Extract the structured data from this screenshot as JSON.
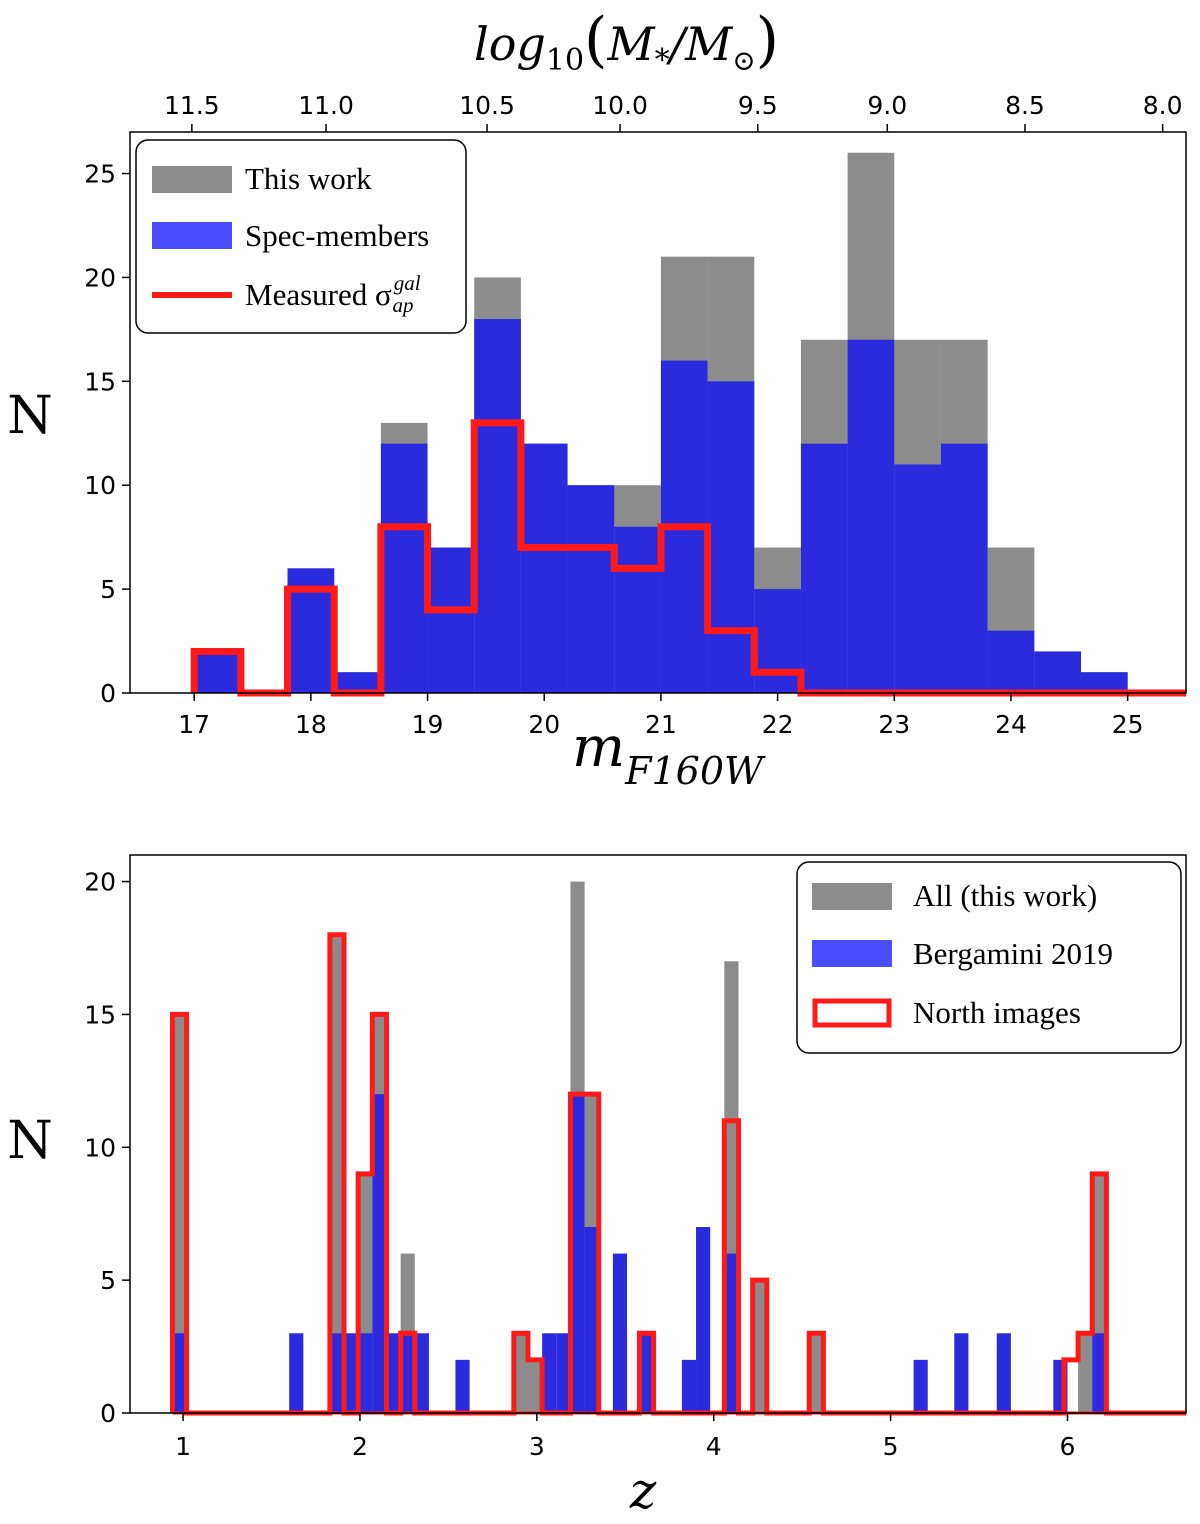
{
  "colors": {
    "gray": "#8c8c8c",
    "blue": "#2b2bdd",
    "blue_legend": "#4d4dff",
    "red": "#ff1a1a"
  },
  "chart_data": [
    {
      "type": "histogram",
      "ylabel": "N",
      "xlabel_main": "m",
      "xlabel_sub": "F160W",
      "top_axis_label": "log10(M*/M⊙)",
      "top_label_parts": {
        "func": "log",
        "func_sub": "10",
        "open": "(",
        "m": "M",
        "star": "*",
        "slash": "/",
        "sun": "⊙",
        "close": ")"
      },
      "xlim": [
        16.45,
        25.5
      ],
      "ylim": [
        0,
        27
      ],
      "xticks": [
        "17",
        "18",
        "19",
        "20",
        "21",
        "22",
        "23",
        "24",
        "25"
      ],
      "yticks": [
        "0",
        "5",
        "10",
        "15",
        "20",
        "25"
      ],
      "top_ticks": [
        "11.5",
        "11.0",
        "10.5",
        "10.0",
        "9.5",
        "9.0",
        "8.5",
        "8.0"
      ],
      "top_tick_positions_mag": [
        16.98,
        18.13,
        19.51,
        20.65,
        21.83,
        22.94,
        24.12,
        25.3
      ],
      "bin_edges": [
        17.0,
        17.4,
        17.8,
        18.2,
        18.6,
        19.0,
        19.4,
        19.8,
        20.2,
        20.6,
        21.0,
        21.4,
        21.8,
        22.2,
        22.6,
        23.0,
        23.4,
        23.8,
        24.2,
        24.6,
        25.0,
        25.5
      ],
      "series": [
        {
          "name": "This work",
          "style": "filled",
          "values": [
            2,
            0,
            6,
            1,
            13,
            7,
            20,
            12,
            10,
            10,
            21,
            21,
            7,
            17,
            26,
            17,
            17,
            7,
            2,
            1,
            0
          ]
        },
        {
          "name": "Spec-members",
          "style": "filled",
          "values": [
            2,
            0,
            6,
            1,
            12,
            7,
            18,
            12,
            10,
            8,
            16,
            15,
            5,
            12,
            17,
            11,
            12,
            3,
            2,
            1,
            0
          ]
        },
        {
          "name": "Measured σ_ap^gal",
          "style": "step",
          "values": [
            2,
            0,
            5,
            0,
            8,
            4,
            13,
            7,
            7,
            6,
            8,
            3,
            1,
            0,
            0,
            0,
            0,
            0,
            0,
            0,
            0
          ]
        }
      ],
      "legend": {
        "position": "top-left",
        "entries": [
          {
            "label": "This work"
          },
          {
            "label": "Spec-members"
          },
          {
            "label": "Measured σ",
            "sup": "gal",
            "sub": "ap"
          }
        ]
      }
    },
    {
      "type": "histogram",
      "ylabel": "N",
      "xlabel": "z",
      "xlim": [
        0.7,
        6.67
      ],
      "ylim": [
        0,
        21
      ],
      "xticks": [
        "1",
        "2",
        "3",
        "4",
        "5",
        "6"
      ],
      "yticks": [
        "0",
        "5",
        "10",
        "15",
        "20"
      ],
      "series": [
        {
          "name": "All (this work)",
          "style": "bars",
          "bars": [
            {
              "x": 0.94,
              "w": 0.08,
              "v": 15
            },
            {
              "x": 1.83,
              "w": 0.08,
              "v": 18
            },
            {
              "x": 1.99,
              "w": 0.08,
              "v": 9
            },
            {
              "x": 2.07,
              "w": 0.08,
              "v": 15
            },
            {
              "x": 2.23,
              "w": 0.08,
              "v": 6
            },
            {
              "x": 2.87,
              "w": 0.08,
              "v": 3
            },
            {
              "x": 2.95,
              "w": 0.08,
              "v": 2
            },
            {
              "x": 3.19,
              "w": 0.08,
              "v": 20
            },
            {
              "x": 3.27,
              "w": 0.08,
              "v": 12
            },
            {
              "x": 3.58,
              "w": 0.08,
              "v": 3
            },
            {
              "x": 4.06,
              "w": 0.08,
              "v": 17
            },
            {
              "x": 4.22,
              "w": 0.08,
              "v": 5
            },
            {
              "x": 4.54,
              "w": 0.08,
              "v": 3
            },
            {
              "x": 6.06,
              "w": 0.08,
              "v": 3
            },
            {
              "x": 6.14,
              "w": 0.08,
              "v": 9
            }
          ]
        },
        {
          "name": "Bergamini 2019",
          "style": "bars",
          "bars": [
            {
              "x": 0.94,
              "w": 0.08,
              "v": 3
            },
            {
              "x": 1.6,
              "w": 0.08,
              "v": 3
            },
            {
              "x": 1.83,
              "w": 0.08,
              "v": 3
            },
            {
              "x": 1.91,
              "w": 0.08,
              "v": 3
            },
            {
              "x": 1.99,
              "w": 0.08,
              "v": 3
            },
            {
              "x": 2.07,
              "w": 0.08,
              "v": 12
            },
            {
              "x": 2.15,
              "w": 0.08,
              "v": 3
            },
            {
              "x": 2.23,
              "w": 0.08,
              "v": 3
            },
            {
              "x": 2.31,
              "w": 0.08,
              "v": 3
            },
            {
              "x": 2.54,
              "w": 0.08,
              "v": 2
            },
            {
              "x": 3.03,
              "w": 0.08,
              "v": 3
            },
            {
              "x": 3.11,
              "w": 0.08,
              "v": 3
            },
            {
              "x": 3.19,
              "w": 0.08,
              "v": 12
            },
            {
              "x": 3.27,
              "w": 0.08,
              "v": 7
            },
            {
              "x": 3.43,
              "w": 0.08,
              "v": 6
            },
            {
              "x": 3.58,
              "w": 0.08,
              "v": 3
            },
            {
              "x": 3.82,
              "w": 0.08,
              "v": 2
            },
            {
              "x": 3.9,
              "w": 0.08,
              "v": 7
            },
            {
              "x": 4.06,
              "w": 0.08,
              "v": 6
            },
            {
              "x": 5.13,
              "w": 0.08,
              "v": 2
            },
            {
              "x": 5.36,
              "w": 0.08,
              "v": 3
            },
            {
              "x": 5.6,
              "w": 0.08,
              "v": 3
            },
            {
              "x": 5.92,
              "w": 0.08,
              "v": 2
            },
            {
              "x": 6.14,
              "w": 0.08,
              "v": 3
            }
          ]
        },
        {
          "name": "North images",
          "style": "step",
          "x": [
            0.94,
            1.02,
            1.83,
            1.91,
            1.99,
            2.07,
            2.15,
            2.23,
            2.31,
            2.87,
            2.95,
            3.03,
            3.19,
            3.35,
            3.58,
            3.66,
            4.06,
            4.14,
            4.22,
            4.3,
            4.54,
            4.62,
            5.98,
            6.06,
            6.14,
            6.22
          ],
          "y": [
            15,
            0,
            18,
            0,
            9,
            15,
            0,
            3,
            0,
            3,
            2,
            0,
            12,
            0,
            3,
            0,
            11,
            0,
            5,
            0,
            3,
            0,
            2,
            3,
            9,
            0
          ]
        }
      ],
      "legend": {
        "position": "top-right",
        "entries": [
          {
            "label": "All (this work)"
          },
          {
            "label": "Bergamini 2019"
          },
          {
            "label": "North images"
          }
        ]
      }
    }
  ]
}
